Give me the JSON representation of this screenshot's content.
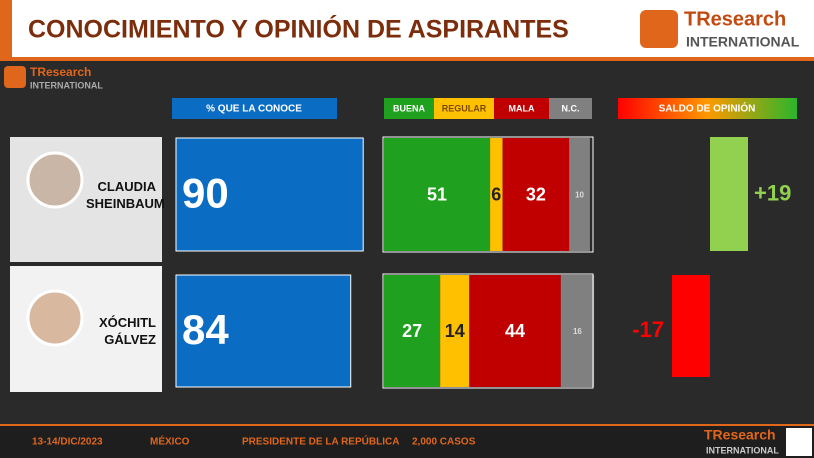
{
  "header": {
    "title": "CONOCIMIENTO Y OPINIÓN DE ASPIRANTES",
    "logo_brand": "TResearch",
    "logo_subtitle": "INTERNATIONAL"
  },
  "chart_data": [
    {
      "type": "hbar",
      "title": "% QUE LA CONOCE",
      "categories": [
        "CLAUDIA SHEINBAUM",
        "XÓCHITL GÁLVEZ"
      ],
      "values": [
        90,
        84
      ],
      "color": "#0b6cc4",
      "xlim": [
        0,
        100
      ]
    },
    {
      "type": "stacked-hbar",
      "xlim": [
        0,
        100
      ],
      "series": [
        {
          "name": "BUENA",
          "color": "#1fa01f",
          "values": [
            51,
            27
          ]
        },
        {
          "name": "REGULAR",
          "color": "#ffc000",
          "values": [
            6,
            14
          ]
        },
        {
          "name": "MALA",
          "color": "#c00000",
          "values": [
            32,
            44
          ]
        },
        {
          "name": "N.C.",
          "color": "#808080",
          "values": [
            10,
            16
          ]
        }
      ]
    },
    {
      "type": "diverging-bar",
      "title": "SALDO DE OPINIÓN",
      "values": [
        19,
        -17
      ],
      "value_labels": [
        "+19",
        "-17"
      ],
      "colors": [
        "#92d050",
        "#ff0000"
      ],
      "ylim": [
        0,
        20
      ]
    }
  ],
  "footer": {
    "date": "13-14/DIC/2023",
    "place": "MÉXICO",
    "office": "PRESIDENTE DE LA REPÚBLICA",
    "cases": "2,000 CASOS"
  }
}
